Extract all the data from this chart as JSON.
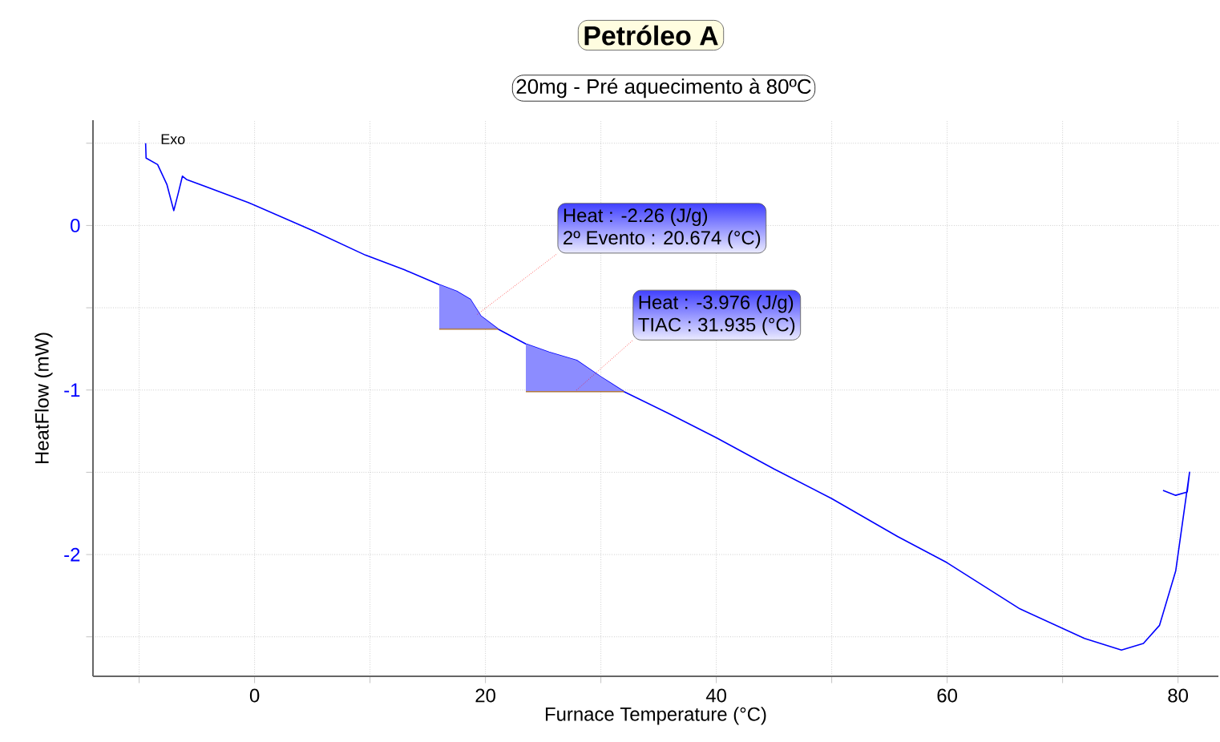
{
  "chart_data": {
    "type": "line",
    "title": "Petróleo A",
    "subtitle": "20mg - Pré aquecimento à 80ºC",
    "xlabel": "Furnace Temperature (°C)",
    "ylabel": "HeatFlow (mW)",
    "xlim": [
      -14,
      83.5
    ],
    "ylim": [
      -2.74,
      0.64
    ],
    "xticks": [
      {
        "value": -10,
        "label": null
      },
      0,
      {
        "value": 10,
        "label": null
      },
      20,
      {
        "value": 30,
        "label": null
      },
      40,
      {
        "value": 50,
        "label": null
      },
      60,
      {
        "value": 70,
        "label": null
      },
      80
    ],
    "yticks": [
      {
        "value": -2.5,
        "label": null
      },
      -2,
      {
        "value": -1.5,
        "label": null
      },
      -1,
      {
        "value": -0.5,
        "label": null
      },
      0,
      {
        "value": 0.5,
        "label": null
      }
    ],
    "grid": true,
    "marker": "none",
    "line_style": "solid",
    "series": [
      {
        "color": "#0000ff",
        "x": [
          -9.44,
          -9.4,
          -8.4,
          -7.6,
          -7.0,
          -6.6,
          -6.25,
          -5.9,
          -0.55,
          5,
          9.6,
          13,
          16.0,
          17.5,
          18.7,
          19.6,
          21.1,
          23.5,
          25.5,
          27.9,
          30,
          32.0,
          35.8,
          40,
          45,
          50,
          55.7,
          60,
          66.3,
          71.9,
          75.1,
          77.0,
          78.4,
          79.8,
          80.7,
          81.0,
          80.8,
          79.8,
          78.7
        ],
        "values": [
          0.5,
          0.41,
          0.37,
          0.25,
          0.09,
          0.2,
          0.3,
          0.28,
          0.14,
          -0.03,
          -0.18,
          -0.27,
          -0.36,
          -0.4,
          -0.45,
          -0.55,
          -0.63,
          -0.72,
          -0.77,
          -0.82,
          -0.92,
          -1.01,
          -1.14,
          -1.29,
          -1.48,
          -1.66,
          -1.89,
          -2.05,
          -2.33,
          -2.51,
          -2.58,
          -2.54,
          -2.43,
          -2.1,
          -1.65,
          -1.5,
          -1.62,
          -1.64,
          -1.61
        ]
      },
      {
        "type": "line",
        "color": "#b07840",
        "x": [
          16.0,
          17.5,
          18.7,
          19.6,
          21.1
        ],
        "values": [
          -0.63,
          -0.63,
          -0.63,
          -0.63,
          -0.63
        ],
        "lower": [
          -0.63,
          -0.63,
          -0.63,
          -0.63,
          -0.63
        ],
        "upper": [
          -0.36,
          -0.4,
          -0.45,
          -0.55,
          -0.63
        ]
      },
      {
        "type": "line",
        "color": "#b07840",
        "x": [
          23.5,
          25.5,
          27.9,
          30,
          32.0
        ],
        "values": [
          -1.01,
          -1.01,
          -1.01,
          -1.01,
          -1.01
        ],
        "lower": [
          -1.01,
          -1.01,
          -1.01,
          -1.01,
          -1.01
        ],
        "upper": [
          -0.72,
          -0.77,
          -0.82,
          -0.92,
          -1.01
        ]
      }
    ],
    "annotations": [
      "Exo",
      "Heat : -2.26 (J/g)",
      {
        "text": "2º Evento : 20.674 (°C)",
        "x": 19.3,
        "y": -0.54
      },
      "Heat : -3.976 (J/g)",
      {
        "text": "TIAC : 31.935 (°C)",
        "x": 27.9,
        "y": -1.0
      }
    ]
  }
}
